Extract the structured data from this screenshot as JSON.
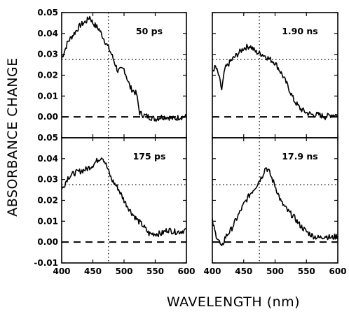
{
  "chart_data": {
    "type": "line",
    "xlabel": "WAVELENGTH (nm)",
    "ylabel": "ABSORBANCE CHANGE",
    "xlim": [
      400,
      600
    ],
    "ylim": [
      -0.01,
      0.05
    ],
    "x_ticks": [
      "400",
      "450",
      "500",
      "550",
      "600"
    ],
    "y_ticks": [
      "-0.01",
      "0.00",
      "0.01",
      "0.02",
      "0.03",
      "0.04",
      "0.05"
    ],
    "reference_lines": {
      "y_zero": 0.0,
      "y_dotted": 0.0275,
      "x_dotted": 475
    },
    "panels": [
      {
        "label": "50 ps",
        "x": [
          400,
          410,
          420,
          430,
          440,
          445,
          450,
          460,
          470,
          480,
          490,
          500,
          510,
          520,
          525,
          530,
          540,
          550,
          560,
          570,
          580,
          590,
          600
        ],
        "y": [
          0.028,
          0.036,
          0.04,
          0.044,
          0.046,
          0.048,
          0.045,
          0.042,
          0.036,
          0.03,
          0.022,
          0.023,
          0.014,
          0.011,
          0.002,
          0.001,
          0.0,
          -0.001,
          0.0,
          0.0,
          -0.001,
          0.0,
          0.0
        ]
      },
      {
        "label": "1.90 ns",
        "x": [
          400,
          405,
          410,
          415,
          420,
          430,
          440,
          450,
          460,
          470,
          480,
          490,
          500,
          510,
          520,
          530,
          540,
          550,
          560,
          570,
          580,
          590,
          600
        ],
        "y": [
          0.022,
          0.024,
          0.02,
          0.013,
          0.023,
          0.027,
          0.03,
          0.033,
          0.034,
          0.031,
          0.03,
          0.028,
          0.026,
          0.021,
          0.015,
          0.008,
          0.004,
          0.002,
          0.001,
          0.001,
          0.0,
          0.001,
          0.001
        ]
      },
      {
        "label": "175 ps",
        "x": [
          400,
          410,
          420,
          430,
          440,
          450,
          460,
          465,
          470,
          480,
          490,
          500,
          510,
          520,
          530,
          540,
          550,
          560,
          570,
          580,
          590,
          600
        ],
        "y": [
          0.025,
          0.031,
          0.033,
          0.034,
          0.035,
          0.037,
          0.04,
          0.041,
          0.038,
          0.03,
          0.026,
          0.02,
          0.015,
          0.011,
          0.008,
          0.004,
          0.004,
          0.004,
          0.006,
          0.005,
          0.005,
          0.006
        ]
      },
      {
        "label": "17.9 ns",
        "x": [
          400,
          405,
          410,
          415,
          420,
          430,
          440,
          450,
          460,
          470,
          480,
          485,
          490,
          500,
          510,
          520,
          530,
          540,
          550,
          560,
          570,
          580,
          590,
          600
        ],
        "y": [
          0.01,
          0.004,
          0.001,
          -0.003,
          0.002,
          0.006,
          0.012,
          0.018,
          0.023,
          0.027,
          0.032,
          0.036,
          0.034,
          0.027,
          0.019,
          0.015,
          0.012,
          0.008,
          0.005,
          0.003,
          0.002,
          0.003,
          0.002,
          0.003
        ]
      }
    ]
  }
}
